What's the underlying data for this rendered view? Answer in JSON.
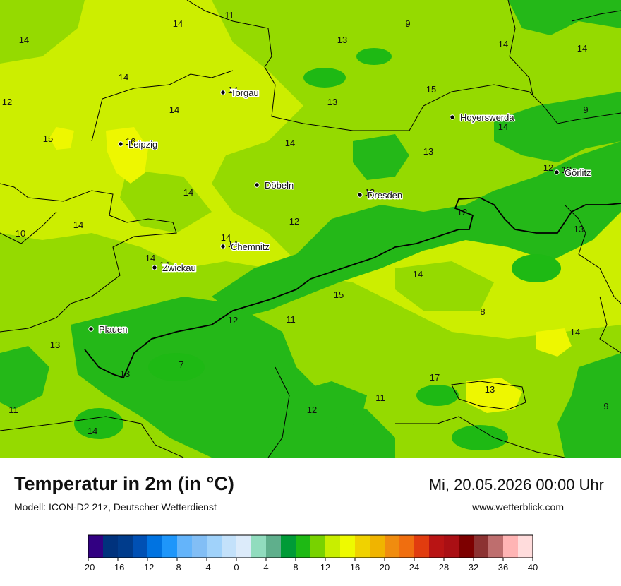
{
  "header": {
    "title": "Temperatur in 2m (in °C)",
    "model": "Modell: ICON-D2 21z, Deutscher Wetterdienst",
    "datetime": "Mi, 20.05.2026 00:00 Uhr",
    "site": "www.wetterblick.com"
  },
  "cities": [
    {
      "name": "Torgau",
      "temp": "14"
    },
    {
      "name": "Leipzig",
      "temp": "16"
    },
    {
      "name": "Hoyerswerda",
      "temp": ""
    },
    {
      "name": "Görlitz",
      "temp": "12"
    },
    {
      "name": "Döbeln",
      "temp": ""
    },
    {
      "name": "Dresden",
      "temp": "13"
    },
    {
      "name": "Chemnitz",
      "temp": "14"
    },
    {
      "name": "Zwickau",
      "temp": "14"
    },
    {
      "name": "Plauen",
      "temp": ""
    }
  ],
  "grid_values": [
    "11",
    "14",
    "14",
    "9",
    "13",
    "14",
    "14",
    "14",
    "12",
    "14",
    "15",
    "13",
    "9",
    "14",
    "15",
    "14",
    "13",
    "12",
    "14",
    "10",
    "14",
    "12",
    "12",
    "13",
    "14",
    "14",
    "14",
    "15",
    "8",
    "14",
    "12",
    "11",
    "13",
    "13",
    "7",
    "17",
    "11",
    "13",
    "12",
    "11",
    "9",
    "14"
  ],
  "legend": {
    "colors": [
      "#320082",
      "#00327d",
      "#003c8c",
      "#0050b4",
      "#0073e1",
      "#1e96fa",
      "#64b4fa",
      "#82bef5",
      "#a0d2fa",
      "#c3e1fa",
      "#dcebfa",
      "#91dcbe",
      "#5faf8c",
      "#009b37",
      "#1eb914",
      "#78d200",
      "#c8ee00",
      "#eefa00",
      "#f0d200",
      "#f0b400",
      "#f08c0f",
      "#f06e0f",
      "#e13c0f",
      "#b91414",
      "#aa0f14",
      "#7d0000",
      "#8c3232",
      "#be6e6e",
      "#ffb4b4",
      "#ffdcdc"
    ],
    "ticks": [
      "-20",
      "-16",
      "-12",
      "-8",
      "-4",
      "0",
      "4",
      "8",
      "12",
      "16",
      "20",
      "24",
      "28",
      "32",
      "36",
      "40"
    ]
  },
  "map_colors": {
    "base_warm": "#ccee00",
    "mid": "#95da00",
    "cool": "#24b818",
    "hot": "#eef700",
    "border": "#000000"
  }
}
